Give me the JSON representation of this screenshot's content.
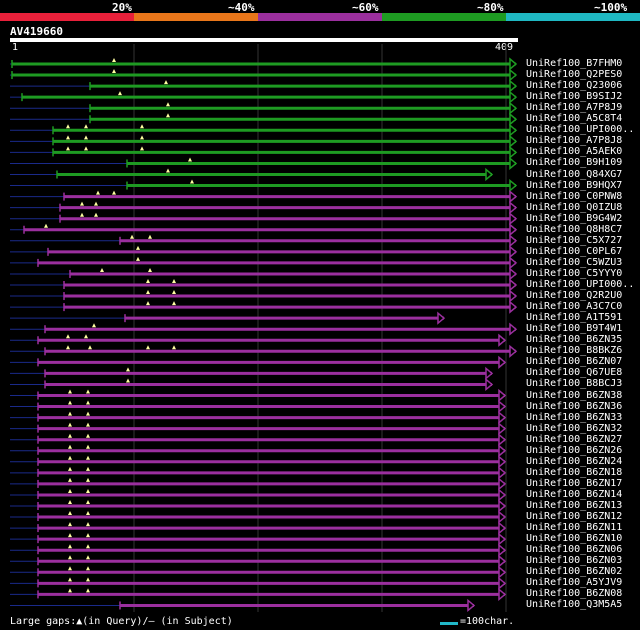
{
  "legend": {
    "segments": [
      {
        "label": "20%",
        "color": "#e8203a"
      },
      {
        "label": "~40%",
        "color": "#e8761a"
      },
      {
        "label": "~60%",
        "color": "#9b2f9e"
      },
      {
        "label": "~80%",
        "color": "#1e9b22"
      },
      {
        "label": "~100%",
        "color": "#1fb8c2"
      }
    ]
  },
  "query": {
    "name": "AV419660",
    "start": "1",
    "end": "409"
  },
  "hits": [
    {
      "label": "UniRef100_B7FHM0",
      "color": "green"
    },
    {
      "label": "UniRef100_Q2PES0",
      "color": "green"
    },
    {
      "label": "UniRef100_Q23006",
      "color": "green"
    },
    {
      "label": "UniRef100_B9SIJ2",
      "color": "green"
    },
    {
      "label": "UniRef100_A7P8J9",
      "color": "green"
    },
    {
      "label": "UniRef100_A5C8T4",
      "color": "green"
    },
    {
      "label": "UniRef100_UPI000..",
      "color": "green"
    },
    {
      "label": "UniRef100_A7P8J8",
      "color": "green"
    },
    {
      "label": "UniRef100_A5AEK0",
      "color": "green"
    },
    {
      "label": "UniRef100_B9H109",
      "color": "green"
    },
    {
      "label": "UniRef100_Q84XG7",
      "color": "green"
    },
    {
      "label": "UniRef100_B9HQX7",
      "color": "green"
    },
    {
      "label": "UniRef100_C0PNW8",
      "color": "purple"
    },
    {
      "label": "UniRef100_Q0IZU8",
      "color": "purple"
    },
    {
      "label": "UniRef100_B9G4W2",
      "color": "purple"
    },
    {
      "label": "UniRef100_Q8H8C7",
      "color": "purple"
    },
    {
      "label": "UniRef100_C5X727",
      "color": "purple"
    },
    {
      "label": "UniRef100_C0PL67",
      "color": "purple"
    },
    {
      "label": "UniRef100_C5WZU3",
      "color": "purple"
    },
    {
      "label": "UniRef100_C5YYY0",
      "color": "purple"
    },
    {
      "label": "UniRef100_UPI000..",
      "color": "purple"
    },
    {
      "label": "UniRef100_Q2R2U0",
      "color": "purple"
    },
    {
      "label": "UniRef100_A3C7C0",
      "color": "purple"
    },
    {
      "label": "UniRef100_A1T591",
      "color": "purple"
    },
    {
      "label": "UniRef100_B9T4W1",
      "color": "purple"
    },
    {
      "label": "UniRef100_B6ZN35",
      "color": "purple"
    },
    {
      "label": "UniRef100_B8BKZ6",
      "color": "purple"
    },
    {
      "label": "UniRef100_B6ZN07",
      "color": "purple"
    },
    {
      "label": "UniRef100_Q67UE8",
      "color": "purple"
    },
    {
      "label": "UniRef100_B8BCJ3",
      "color": "purple"
    },
    {
      "label": "UniRef100_B6ZN38",
      "color": "purple"
    },
    {
      "label": "UniRef100_B6ZN36",
      "color": "purple"
    },
    {
      "label": "UniRef100_B6ZN33",
      "color": "purple"
    },
    {
      "label": "UniRef100_B6ZN32",
      "color": "purple"
    },
    {
      "label": "UniRef100_B6ZN27",
      "color": "purple"
    },
    {
      "label": "UniRef100_B6ZN26",
      "color": "purple"
    },
    {
      "label": "UniRef100_B6ZN24",
      "color": "purple"
    },
    {
      "label": "UniRef100_B6ZN18",
      "color": "purple"
    },
    {
      "label": "UniRef100_B6ZN17",
      "color": "purple"
    },
    {
      "label": "UniRef100_B6ZN14",
      "color": "purple"
    },
    {
      "label": "UniRef100_B6ZN13",
      "color": "purple"
    },
    {
      "label": "UniRef100_B6ZN12",
      "color": "purple"
    },
    {
      "label": "UniRef100_B6ZN11",
      "color": "purple"
    },
    {
      "label": "UniRef100_B6ZN10",
      "color": "purple"
    },
    {
      "label": "UniRef100_B6ZN06",
      "color": "purple"
    },
    {
      "label": "UniRef100_B6ZN03",
      "color": "purple"
    },
    {
      "label": "UniRef100_B6ZN02",
      "color": "purple"
    },
    {
      "label": "UniRef100_A5YJV9",
      "color": "purple"
    },
    {
      "label": "UniRef100_B6ZN08",
      "color": "purple"
    },
    {
      "label": "UniRef100_Q3M5A5",
      "color": "purple"
    }
  ],
  "colors": {
    "green": "#1e9b22",
    "purple": "#9b2f9e",
    "navy": "#1a2a8a",
    "scale": "#21b8c8"
  },
  "footer": {
    "text": "Large gaps:▲(in Query)/— (in Subject)"
  },
  "scale": {
    "text": "=100char."
  }
}
